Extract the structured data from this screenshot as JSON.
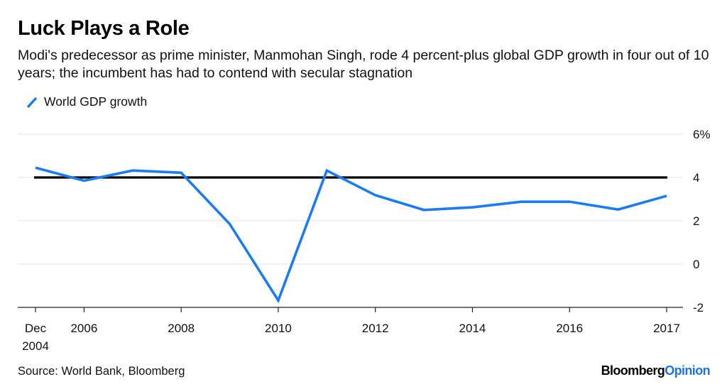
{
  "header": {
    "title": "Luck Plays a Role",
    "subtitle": "Modi's predecessor as prime minister, Manmohan Singh, rode 4 percent-plus global GDP growth in four out of 10 years; the incumbent has had to contend with secular stagnation"
  },
  "legend": {
    "items": [
      {
        "label": "World GDP growth",
        "color": "#1a7cf5",
        "icon": "diagonal-line-swatch"
      }
    ]
  },
  "footer": {
    "source": "Source: World Bank, Bloomberg",
    "brand_part1": "Bloomberg",
    "brand_part2": "Opinion"
  },
  "chart_data": {
    "type": "line",
    "title": "Luck Plays a Role",
    "xlabel": "",
    "ylabel": "",
    "y_unit": "%",
    "ylim": [
      -2,
      6
    ],
    "y_ticks": [
      6,
      4,
      2,
      0,
      -2
    ],
    "y_tick_labels": [
      "6%",
      "4",
      "2",
      "0",
      "-2"
    ],
    "y_axis_position": "right",
    "grid": true,
    "legend_position": "top-left",
    "x_index": [
      0,
      1,
      2,
      3,
      4,
      5,
      6,
      7,
      8,
      9,
      10,
      11,
      12,
      13
    ],
    "x_ticks": [
      {
        "index": 0,
        "label": [
          "Dec",
          "2004"
        ]
      },
      {
        "index": 1,
        "label": [
          "2006"
        ]
      },
      {
        "index": 3,
        "label": [
          "2008"
        ]
      },
      {
        "index": 5,
        "label": [
          "2010"
        ]
      },
      {
        "index": 7,
        "label": [
          "2012"
        ]
      },
      {
        "index": 9,
        "label": [
          "2014"
        ]
      },
      {
        "index": 11,
        "label": [
          "2016"
        ]
      },
      {
        "index": 13,
        "label": [
          "2017"
        ]
      }
    ],
    "series": [
      {
        "name": "World GDP growth",
        "color": "#1a7cf5",
        "values": [
          4.45,
          3.85,
          4.32,
          4.22,
          1.85,
          -1.68,
          4.32,
          3.18,
          2.5,
          2.62,
          2.88,
          2.88,
          2.52,
          3.15
        ]
      }
    ],
    "reference_lines": [
      {
        "name": "4 percent threshold",
        "value": 4,
        "color": "#000000"
      }
    ]
  }
}
